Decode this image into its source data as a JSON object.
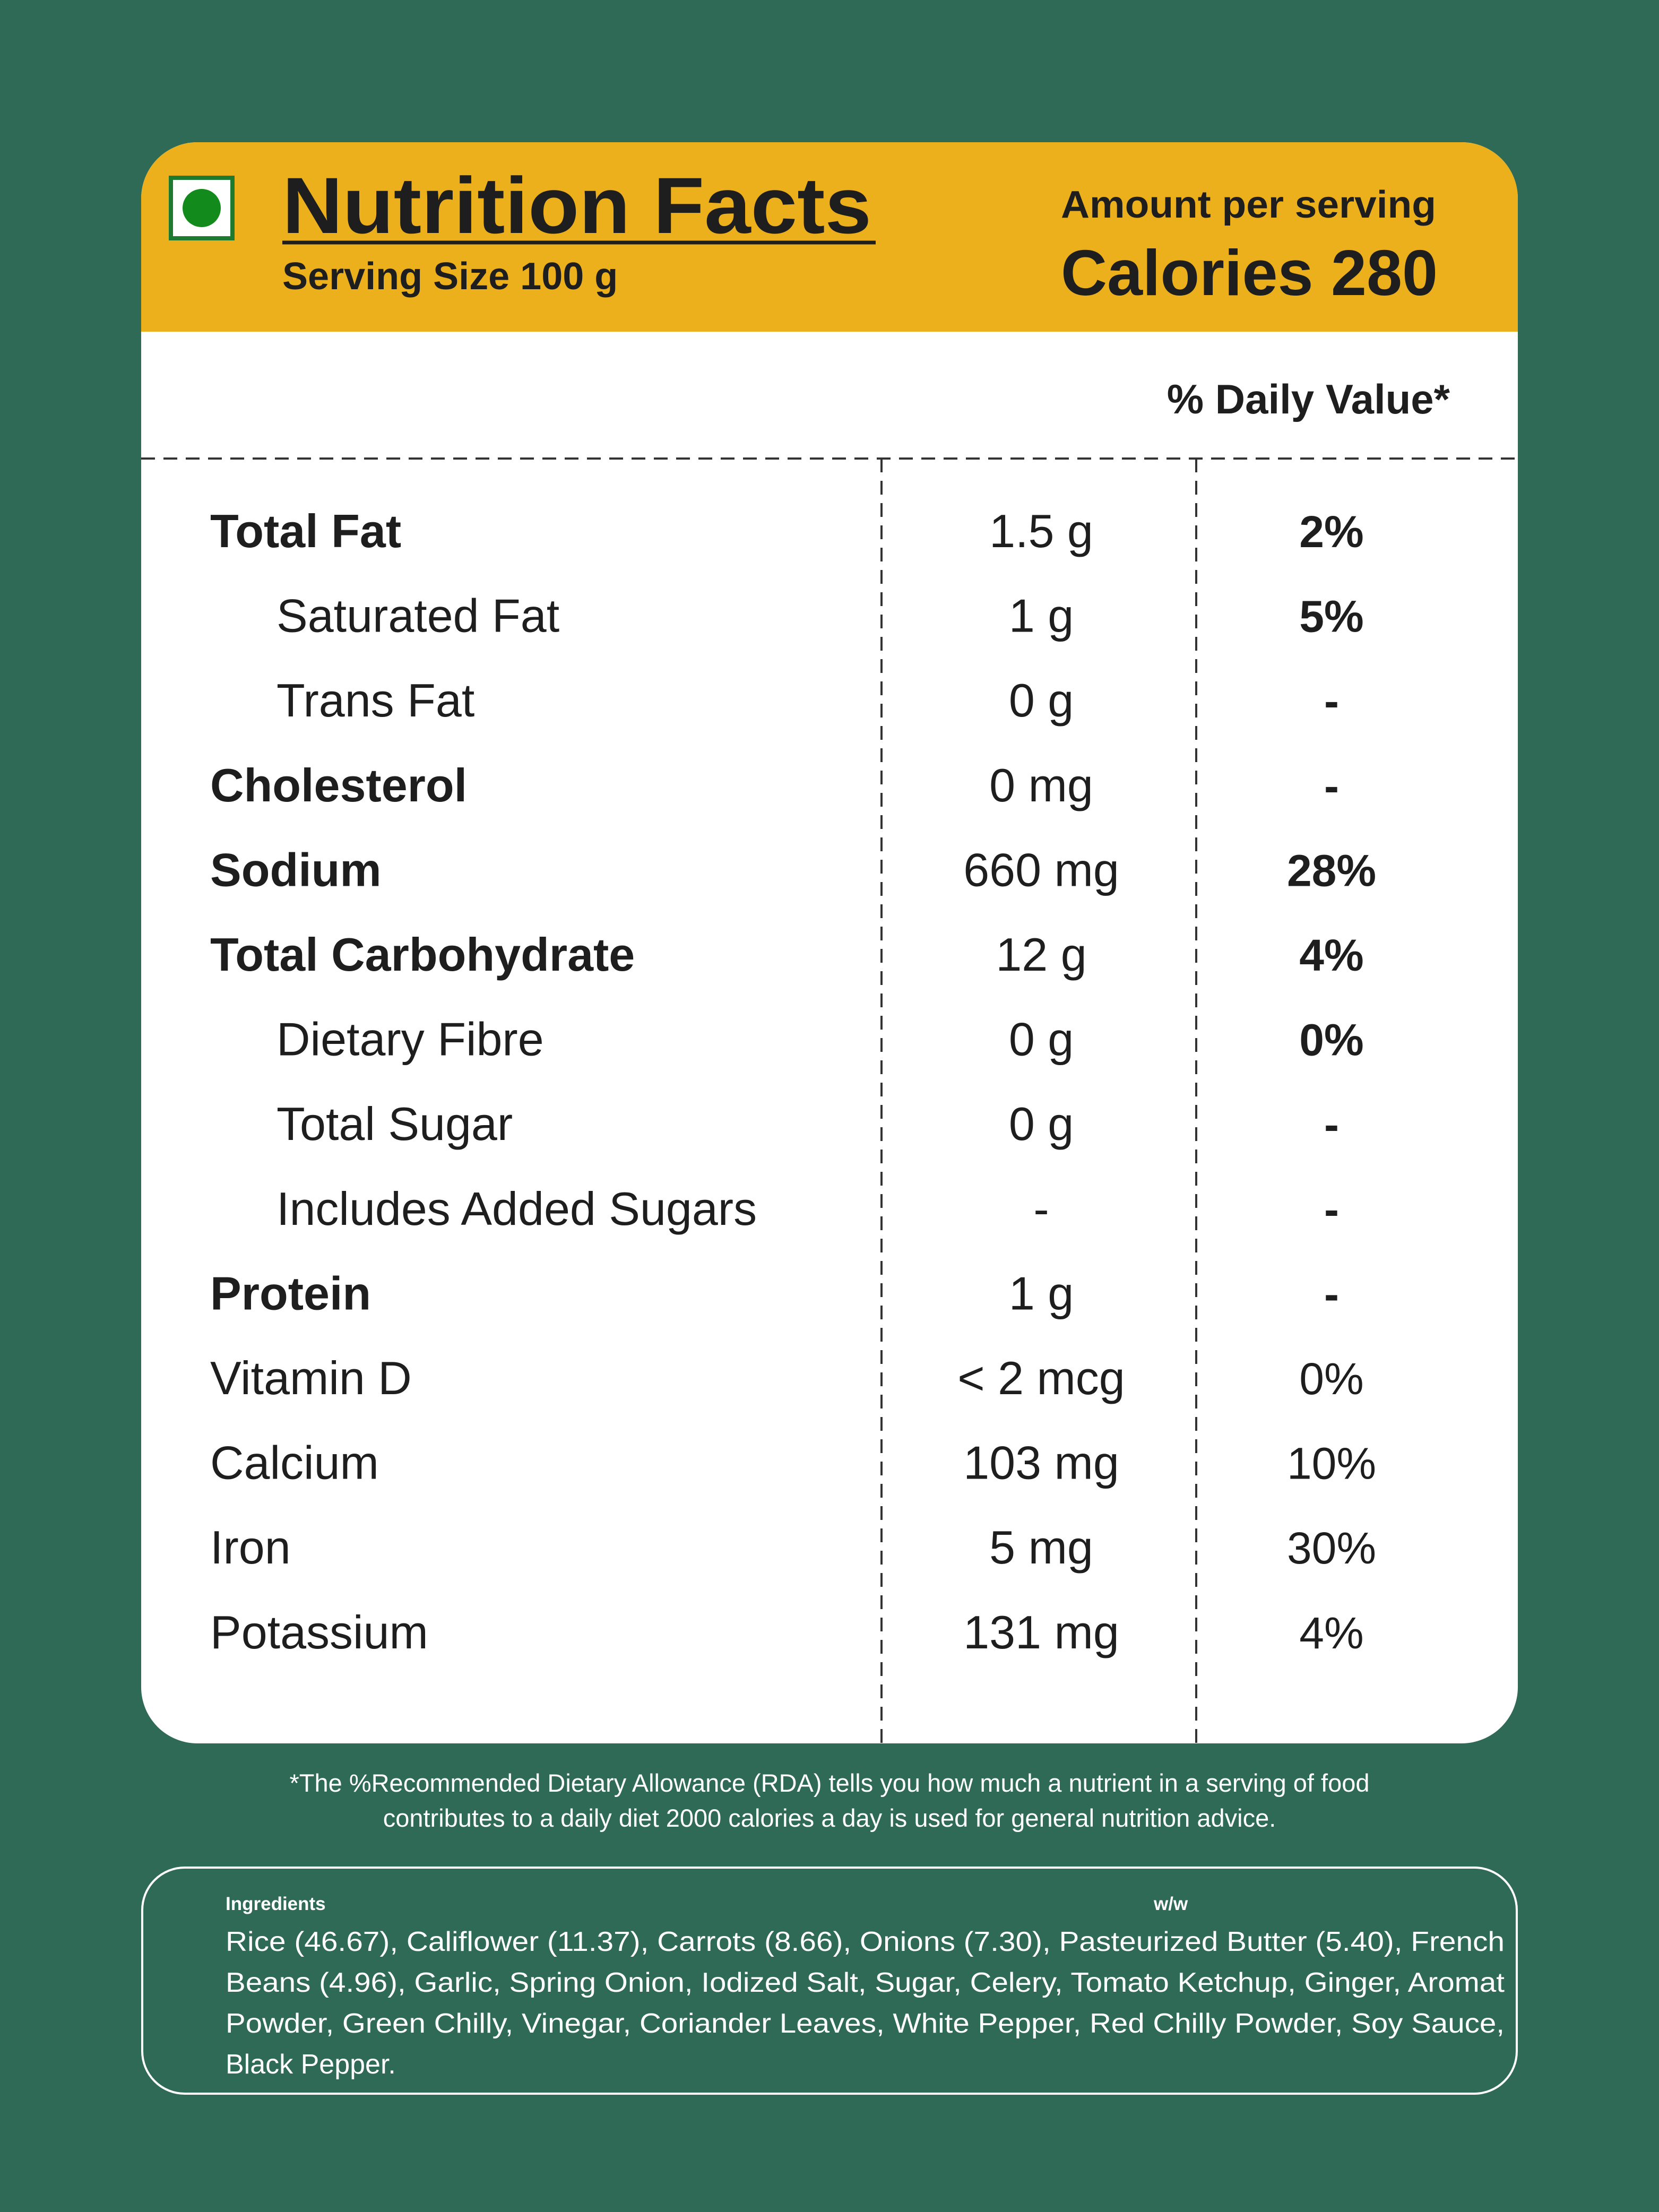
{
  "header": {
    "title": "Nutrition Facts",
    "serving_size": "Serving Size  100 g",
    "amount_label": "Amount per serving",
    "calories": "Calories 280"
  },
  "daily_value_label": "% Daily Value*",
  "table": {
    "rows": [
      [
        "Total Fat",
        "1.5 g",
        "2%"
      ],
      [
        "Saturated Fat",
        "1 g",
        "5%"
      ],
      [
        "Trans Fat",
        "0 g",
        "-"
      ],
      [
        "Cholesterol",
        "0 mg",
        "-"
      ],
      [
        "Sodium",
        "660 mg",
        "28%"
      ],
      [
        "Total Carbohydrate",
        "12 g",
        "4%"
      ],
      [
        "Dietary Fibre",
        "0 g",
        "0%"
      ],
      [
        "Total Sugar",
        "0 g",
        "-"
      ],
      [
        "Includes Added Sugars",
        "-",
        "-"
      ],
      [
        "Protein",
        "1 g",
        "-"
      ],
      [
        "Vitamin D",
        "< 2 mcg",
        "0%"
      ],
      [
        "Calcium",
        "103 mg",
        "10%"
      ],
      [
        "Iron",
        "5 mg",
        "30%"
      ],
      [
        "Potassium",
        "131 mg",
        "4%"
      ]
    ]
  },
  "footnote": [
    "*The %Recommended Dietary Allowance (RDA) tells you how much a nutrient in a serving of food",
    "contributes to a daily diet 2000 calories a day is used for general nutrition advice."
  ],
  "ingredients": {
    "heading": "Ingredients",
    "unit": "w/w",
    "lines": [
      "Rice (46.67), Califlower (11.37), Carrots (8.66), Onions (7.30), Pasteurized Butter (5.40), French",
      "Beans (4.96), Garlic, Spring Onion, Iodized Salt, Sugar, Celery, Tomato Ketchup, Ginger, Aromat",
      "Powder, Green Chilly, Vinegar, Coriander Leaves, White Pepper, Red Chilly Powder, Soy Sauce,",
      "Black Pepper."
    ]
  }
}
